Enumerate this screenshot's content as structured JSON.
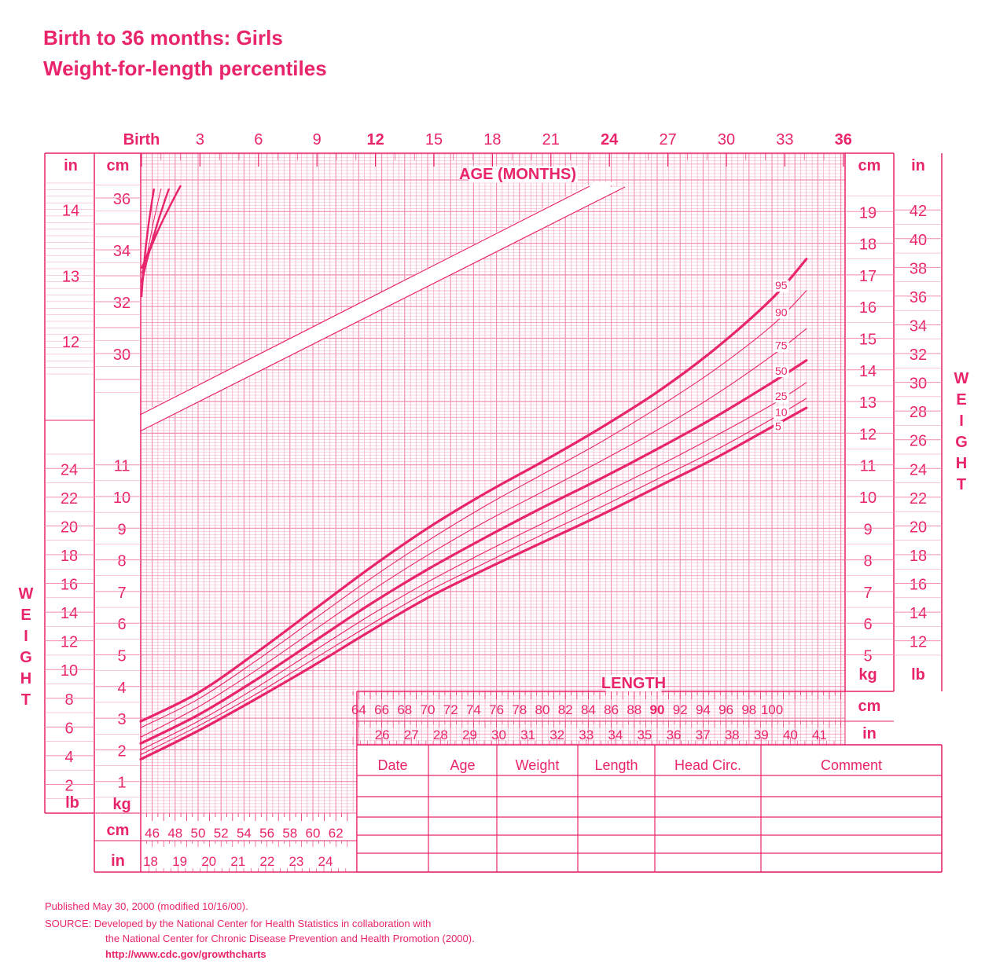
{
  "title_line1": "Birth to 36 months: Girls",
  "title_line2": "Weight-for-length percentiles",
  "footer": {
    "published": "Published May 30, 2000 (modified 10/16/00).",
    "source_line1": "SOURCE: Developed by the National Center for Health Statistics in collaboration with",
    "source_line2": "the National Center for Chronic Disease Prevention and Health Promotion (2000).",
    "url": "http://www.cdc.gov/growthcharts"
  },
  "colors": {
    "accent": "#e8246c",
    "grid": "#f08cb0"
  },
  "chart_data": {
    "type": "line",
    "age_axis": {
      "label": "AGE (MONTHS)",
      "ticks": [
        "Birth",
        "3",
        "6",
        "9",
        "12",
        "15",
        "18",
        "21",
        "24",
        "27",
        "30",
        "33",
        "36"
      ],
      "bold_ticks": [
        "Birth",
        "12",
        "24",
        "36"
      ]
    },
    "length_axis": {
      "label": "LENGTH",
      "unit_cm": "cm",
      "unit_in": "in",
      "cm_ticks": [
        46,
        48,
        50,
        52,
        54,
        56,
        58,
        60,
        62,
        64,
        66,
        68,
        70,
        72,
        74,
        76,
        78,
        80,
        82,
        84,
        86,
        88,
        90,
        92,
        94,
        96,
        98,
        100
      ],
      "in_ticks": [
        18,
        19,
        20,
        21,
        22,
        23,
        24,
        26,
        27,
        28,
        29,
        30,
        31,
        32,
        33,
        34,
        35,
        36,
        37,
        38,
        39,
        40,
        41
      ]
    },
    "weight_axis": {
      "label": "WEIGHT",
      "unit_kg": "kg",
      "unit_lb": "lb",
      "kg_ticks": [
        1,
        2,
        3,
        4,
        5,
        6,
        7,
        8,
        9,
        10,
        11,
        12,
        13,
        14,
        15,
        16,
        17,
        18,
        19
      ],
      "lb_ticks": [
        2,
        4,
        6,
        8,
        10,
        12,
        14,
        16,
        18,
        20,
        22,
        24,
        26,
        28,
        30,
        32,
        34,
        36,
        38,
        40,
        42
      ]
    },
    "head_axis": {
      "unit_cm": "cm",
      "unit_in": "in",
      "cm_ticks": [
        30,
        32,
        34,
        36
      ],
      "in_ticks": [
        12,
        13,
        14
      ]
    },
    "series": [
      {
        "name": "95",
        "x": [
          45,
          50,
          55,
          60,
          65,
          70,
          75,
          80,
          85,
          90,
          95,
          100,
          103
        ],
        "y": [
          2.9,
          3.8,
          5.05,
          6.4,
          7.75,
          9.0,
          10.1,
          11.1,
          12.15,
          13.3,
          14.65,
          16.25,
          17.5
        ]
      },
      {
        "name": "90",
        "x": [
          45,
          50,
          55,
          60,
          65,
          70,
          75,
          80,
          85,
          90,
          95,
          100,
          103
        ],
        "y": [
          2.7,
          3.6,
          4.8,
          6.1,
          7.4,
          8.6,
          9.7,
          10.7,
          11.7,
          12.8,
          14.0,
          15.4,
          16.5
        ]
      },
      {
        "name": "75",
        "x": [
          45,
          50,
          55,
          60,
          65,
          70,
          75,
          80,
          85,
          90,
          95,
          100,
          103
        ],
        "y": [
          2.4,
          3.35,
          4.5,
          5.75,
          7.0,
          8.15,
          9.2,
          10.15,
          11.1,
          12.1,
          13.2,
          14.45,
          15.3
        ]
      },
      {
        "name": "50",
        "x": [
          45,
          50,
          55,
          60,
          65,
          70,
          75,
          80,
          85,
          90,
          95,
          100,
          103
        ],
        "y": [
          2.2,
          3.1,
          4.2,
          5.4,
          6.6,
          7.7,
          8.7,
          9.65,
          10.55,
          11.5,
          12.5,
          13.6,
          14.3
        ]
      },
      {
        "name": "25",
        "x": [
          45,
          50,
          55,
          60,
          65,
          70,
          75,
          80,
          85,
          90,
          95,
          100,
          103
        ],
        "y": [
          2.0,
          2.9,
          3.95,
          5.1,
          6.25,
          7.3,
          8.25,
          9.15,
          10.05,
          10.95,
          11.9,
          12.9,
          13.6
        ]
      },
      {
        "name": "10",
        "x": [
          45,
          50,
          55,
          60,
          65,
          70,
          75,
          80,
          85,
          90,
          95,
          100,
          103
        ],
        "y": [
          1.85,
          2.75,
          3.75,
          4.85,
          5.95,
          7.0,
          7.9,
          8.8,
          9.65,
          10.55,
          11.45,
          12.45,
          13.1
        ]
      },
      {
        "name": "5",
        "x": [
          45,
          50,
          55,
          60,
          65,
          70,
          75,
          80,
          85,
          90,
          95,
          100,
          103
        ],
        "y": [
          1.7,
          2.6,
          3.6,
          4.65,
          5.75,
          6.8,
          7.7,
          8.55,
          9.4,
          10.3,
          11.2,
          12.2,
          12.8
        ]
      }
    ]
  },
  "record_table": {
    "headers": [
      "Date",
      "Age",
      "Weight",
      "Length",
      "Head  Circ.",
      "Comment"
    ],
    "empty_rows": 5
  }
}
